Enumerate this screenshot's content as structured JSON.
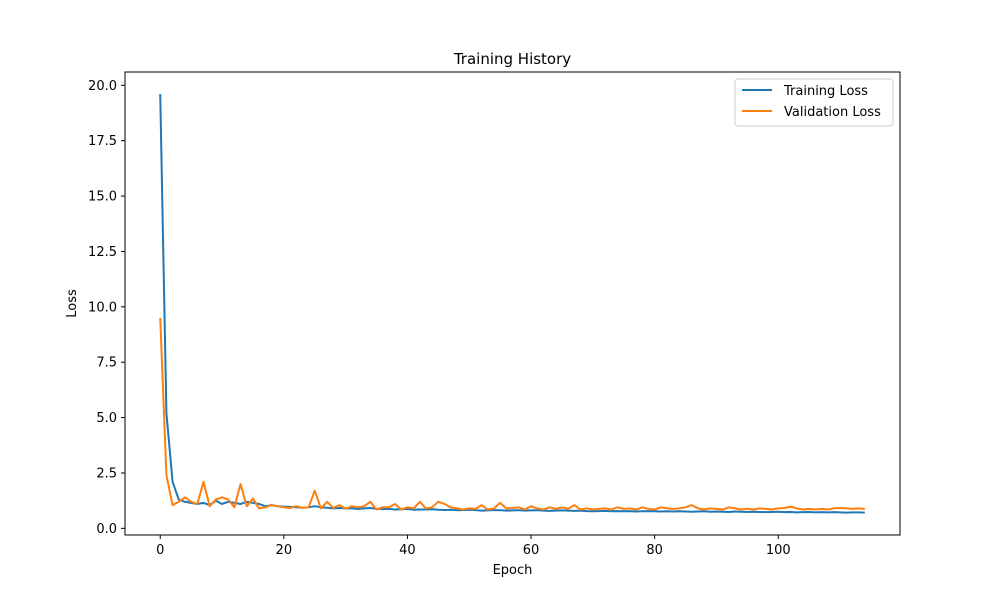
{
  "chart_data": {
    "type": "line",
    "title": "Training History",
    "xlabel": "Epoch",
    "ylabel": "Loss",
    "xlim": [
      -5.7,
      119.7
    ],
    "ylim": [
      -0.3,
      20.6
    ],
    "xticks": [
      0,
      20,
      40,
      60,
      80,
      100
    ],
    "yticks": [
      0.0,
      2.5,
      5.0,
      7.5,
      10.0,
      12.5,
      15.0,
      17.5,
      20.0
    ],
    "grid": false,
    "legend_position": "top-right",
    "series": [
      {
        "name": "Training Loss",
        "color": "#1f77b4",
        "values": [
          19.6,
          5.2,
          2.1,
          1.3,
          1.2,
          1.15,
          1.1,
          1.15,
          1.05,
          1.25,
          1.1,
          1.2,
          1.15,
          1.1,
          1.2,
          1.15,
          1.1,
          1.0,
          1.05,
          1.0,
          0.98,
          0.97,
          0.95,
          0.93,
          0.95,
          1.0,
          0.95,
          0.93,
          0.9,
          0.92,
          0.9,
          0.9,
          0.88,
          0.9,
          0.92,
          0.88,
          0.87,
          0.88,
          0.85,
          0.86,
          0.88,
          0.84,
          0.85,
          0.85,
          0.86,
          0.84,
          0.83,
          0.84,
          0.82,
          0.83,
          0.84,
          0.82,
          0.8,
          0.81,
          0.83,
          0.82,
          0.8,
          0.81,
          0.82,
          0.8,
          0.81,
          0.82,
          0.8,
          0.79,
          0.8,
          0.81,
          0.8,
          0.79,
          0.8,
          0.78,
          0.77,
          0.78,
          0.79,
          0.77,
          0.78,
          0.77,
          0.78,
          0.76,
          0.77,
          0.78,
          0.77,
          0.76,
          0.77,
          0.76,
          0.77,
          0.76,
          0.75,
          0.76,
          0.77,
          0.75,
          0.76,
          0.75,
          0.74,
          0.76,
          0.75,
          0.74,
          0.75,
          0.74,
          0.73,
          0.74,
          0.75,
          0.73,
          0.74,
          0.72,
          0.73,
          0.74,
          0.72,
          0.73,
          0.72,
          0.73,
          0.72,
          0.71,
          0.72,
          0.72,
          0.71
        ]
      },
      {
        "name": "Validation Loss",
        "color": "#ff7f0e",
        "values": [
          9.5,
          2.4,
          1.05,
          1.2,
          1.4,
          1.2,
          1.1,
          2.1,
          1.0,
          1.3,
          1.4,
          1.3,
          0.95,
          2.0,
          1.0,
          1.35,
          0.9,
          0.95,
          1.05,
          1.0,
          0.95,
          0.92,
          1.0,
          0.93,
          0.95,
          1.7,
          0.9,
          1.2,
          0.92,
          1.05,
          0.88,
          1.0,
          0.95,
          1.0,
          1.2,
          0.85,
          0.95,
          0.95,
          1.1,
          0.85,
          0.95,
          0.9,
          1.2,
          0.9,
          0.95,
          1.2,
          1.1,
          0.95,
          0.9,
          0.85,
          0.9,
          0.88,
          1.05,
          0.85,
          0.9,
          1.15,
          0.9,
          0.92,
          0.95,
          0.85,
          1.0,
          0.9,
          0.85,
          0.95,
          0.88,
          0.95,
          0.88,
          1.05,
          0.85,
          0.9,
          0.85,
          0.88,
          0.9,
          0.85,
          0.95,
          0.88,
          0.9,
          0.85,
          0.95,
          0.88,
          0.85,
          0.95,
          0.9,
          0.88,
          0.9,
          0.95,
          1.05,
          0.9,
          0.85,
          0.9,
          0.88,
          0.85,
          0.95,
          0.9,
          0.85,
          0.88,
          0.85,
          0.9,
          0.88,
          0.85,
          0.9,
          0.92,
          0.98,
          0.9,
          0.85,
          0.88,
          0.85,
          0.88,
          0.85,
          0.9,
          0.92,
          0.9,
          0.88,
          0.9,
          0.88
        ]
      }
    ]
  }
}
